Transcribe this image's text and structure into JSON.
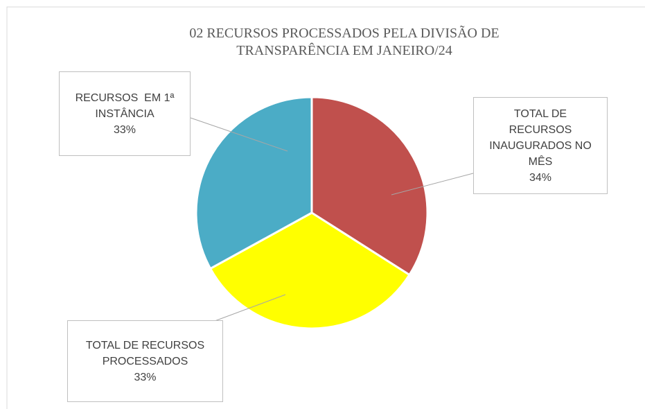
{
  "chart_data": {
    "type": "pie",
    "title": "02 RECURSOS PROCESSADOS PELA DIVISÃO DE TRANSPARÊNCIA EM JANEIRO/24",
    "categories": [
      "TOTAL DE RECURSOS INAUGURADOS NO MÊS",
      "TOTAL DE RECURSOS PROCESSADOS",
      "RECURSOS  EM 1ª INSTÂNCIA"
    ],
    "values": [
      34,
      33,
      33
    ],
    "value_labels": [
      "34%",
      "33%",
      "33%"
    ],
    "colors": [
      "#c0504d",
      "#ffff00",
      "#4bacc6"
    ]
  }
}
